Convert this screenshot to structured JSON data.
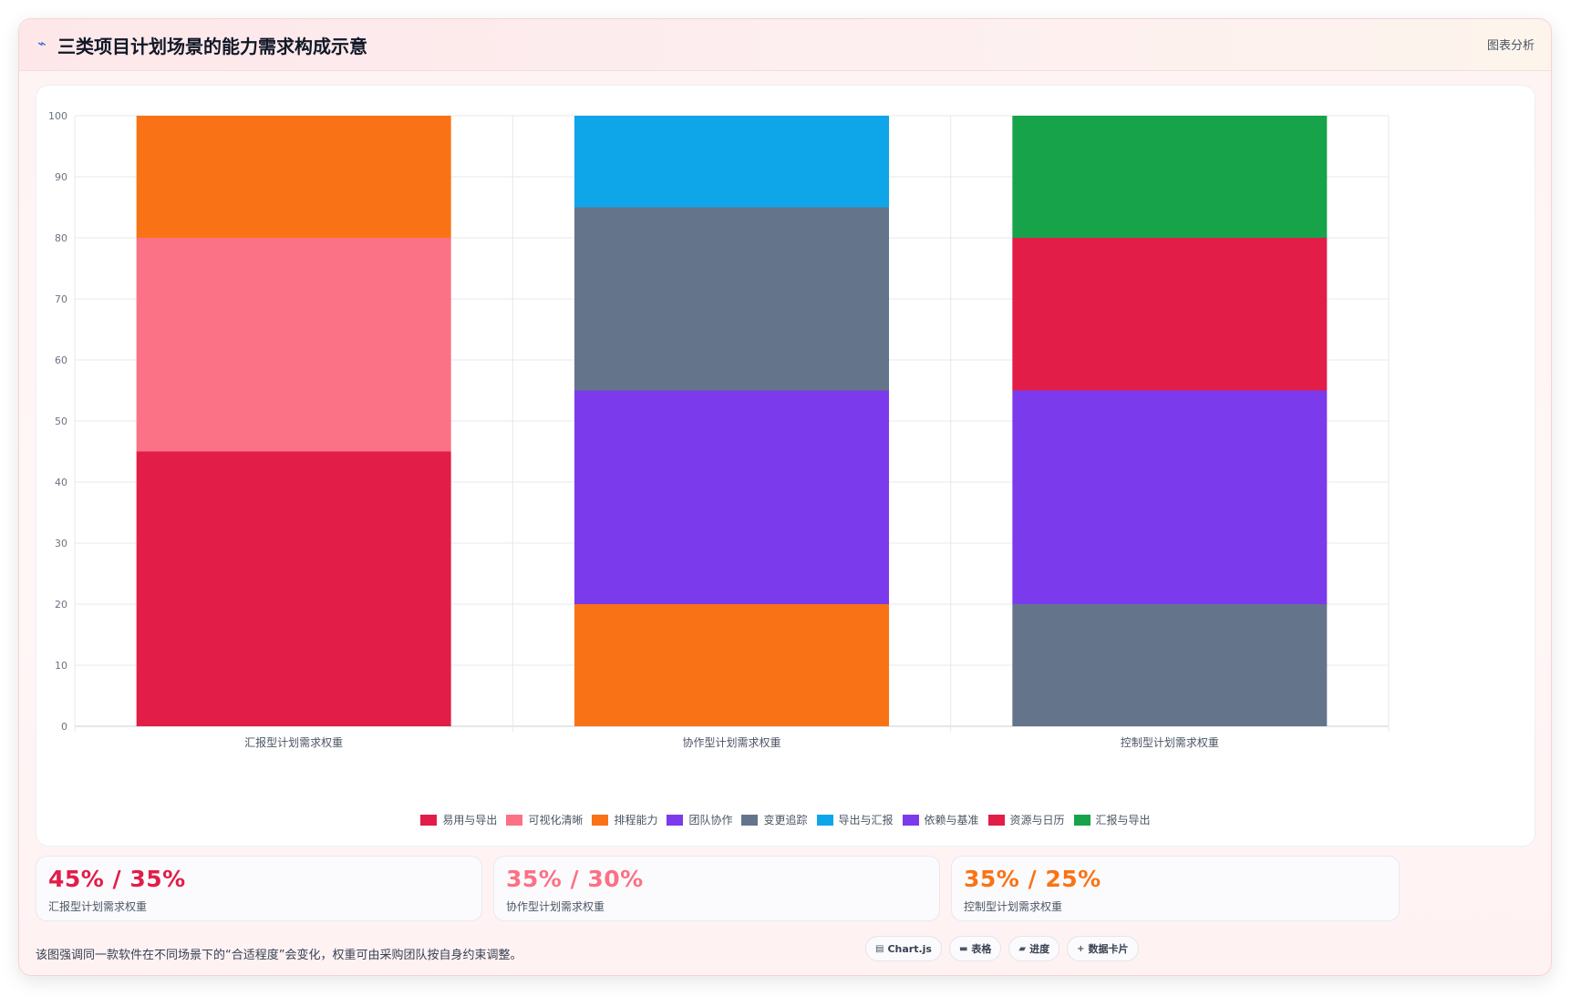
{
  "header": {
    "title": "三类项目计划场景的能力需求构成示意",
    "tag": "图表分析",
    "icon": "pulse-icon"
  },
  "chart_data": {
    "type": "bar",
    "stacked": true,
    "categories": [
      "汇报型计划需求权重",
      "协作型计划需求权重",
      "控制型计划需求权重"
    ],
    "ylim": [
      0,
      100
    ],
    "yticks": [
      0,
      10,
      20,
      30,
      40,
      50,
      60,
      70,
      80,
      90,
      100
    ],
    "grid": true,
    "legend_position": "bottom",
    "series": [
      {
        "name": "易用与导出",
        "color": "#e11d48",
        "values": [
          45,
          0,
          0
        ]
      },
      {
        "name": "可视化清晰",
        "color": "#fb7185",
        "values": [
          35,
          0,
          0
        ]
      },
      {
        "name": "排程能力",
        "color": "#f97316",
        "values": [
          20,
          20,
          0
        ]
      },
      {
        "name": "团队协作",
        "color": "#7c3aed",
        "values": [
          0,
          35,
          0
        ]
      },
      {
        "name": "变更追踪",
        "color": "#64748b",
        "values": [
          0,
          30,
          20
        ]
      },
      {
        "name": "导出与汇报",
        "color": "#0ea5e9",
        "values": [
          0,
          15,
          0
        ]
      },
      {
        "name": "依赖与基准",
        "color": "#7c3aed",
        "values": [
          0,
          0,
          35
        ]
      },
      {
        "name": "资源与日历",
        "color": "#e11d48",
        "values": [
          0,
          0,
          25
        ]
      },
      {
        "name": "汇报与导出",
        "color": "#16a34a",
        "values": [
          0,
          0,
          20
        ]
      }
    ]
  },
  "stats": [
    {
      "value": "45% / 35%",
      "label": "汇报型计划需求权重",
      "color": "#e11d48"
    },
    {
      "value": "35% / 30%",
      "label": "协作型计划需求权重",
      "color": "#fb7185"
    },
    {
      "value": "35% / 25%",
      "label": "控制型计划需求权重",
      "color": "#f97316"
    }
  ],
  "note": "该图强调同一款软件在不同场景下的“合适程度”会变化，权重可由采购团队按自身约束调整。",
  "chips": [
    {
      "icon": "chart-icon",
      "glyph": "▤",
      "label": "Chart.js"
    },
    {
      "icon": "table-icon",
      "glyph": "▬",
      "label": "表格"
    },
    {
      "icon": "progress-icon",
      "glyph": "▰",
      "label": "进度"
    },
    {
      "icon": "plus-icon",
      "glyph": "+",
      "label": "数据卡片"
    }
  ]
}
